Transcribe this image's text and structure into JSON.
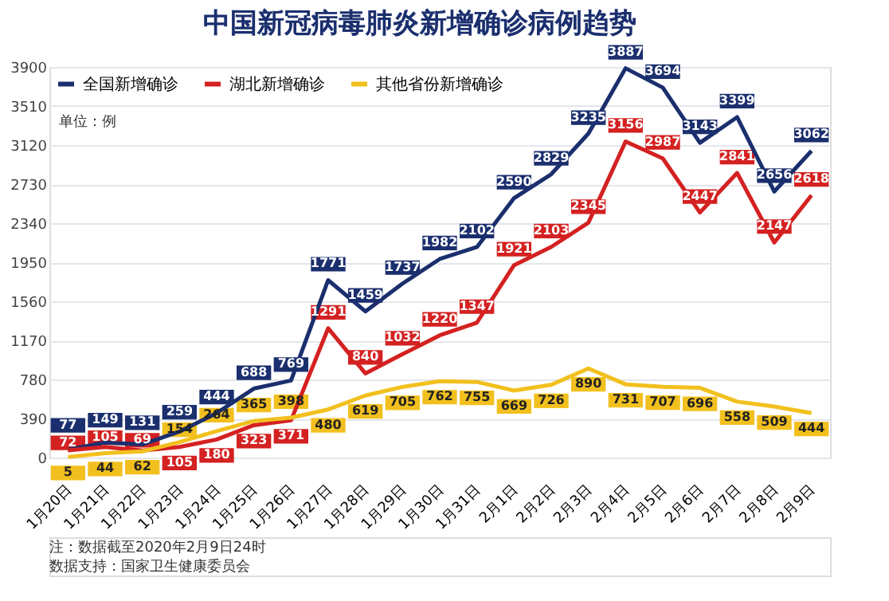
{
  "chart_data": {
    "type": "line",
    "title": "中国新冠病毒肺炎新增确诊病例趋势",
    "categories": [
      "1月20日",
      "1月21日",
      "1月22日",
      "1月23日",
      "1月24日",
      "1月25日",
      "1月26日",
      "1月27日",
      "1月28日",
      "1月29日",
      "1月30日",
      "1月31日",
      "2月1日",
      "2月2日",
      "2月3日",
      "2月4日",
      "2月5日",
      "2月6日",
      "2月7日",
      "2月8日",
      "2月9日"
    ],
    "series": [
      {
        "name": "全国新增确诊",
        "color": "#1b2f6e",
        "values": [
          77,
          149,
          131,
          259,
          444,
          688,
          769,
          1771,
          1459,
          1737,
          1982,
          2102,
          2590,
          2829,
          3235,
          3887,
          3694,
          3143,
          3399,
          2656,
          3062
        ]
      },
      {
        "name": "湖北新增确诊",
        "color": "#d42121",
        "values": [
          72,
          105,
          69,
          105,
          180,
          323,
          371,
          1291,
          840,
          1032,
          1220,
          1347,
          1921,
          2103,
          2345,
          3156,
          2987,
          2447,
          2841,
          2147,
          2618
        ]
      },
      {
        "name": "其他省份新增确诊",
        "color": "#f2c01e",
        "values": [
          5,
          44,
          62,
          154,
          264,
          365,
          398,
          480,
          619,
          705,
          762,
          755,
          669,
          726,
          890,
          731,
          707,
          696,
          558,
          509,
          444
        ]
      }
    ],
    "ylim": [
      0,
      3900
    ],
    "yticks": [
      0,
      390,
      780,
      1170,
      1560,
      1950,
      2340,
      2730,
      3120,
      3510,
      3900
    ],
    "grid": "y",
    "legend": "top left",
    "data_labels": true,
    "line_style": "solid",
    "marker": "none",
    "annotations": [
      "单位：例",
      "注：数据截至2020年2月9日24时",
      "数据支持：国家卫生健康委员会"
    ]
  }
}
